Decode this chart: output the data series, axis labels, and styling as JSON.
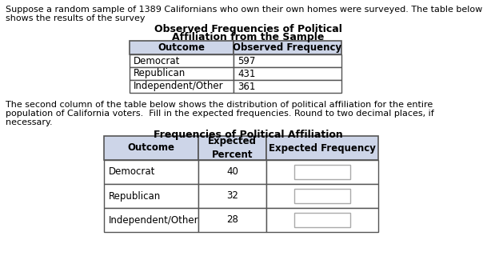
{
  "intro_line1": "Suppose a random sample of 1389 Californians who own their own homes were surveyed. The table below",
  "intro_line2": "shows the results of the survey",
  "table1_title_line1": "Observed Frequencies of Political",
  "table1_title_line2": "Affiliation from the Sample",
  "table1_headers": [
    "Outcome",
    "Observed Frequency"
  ],
  "table1_rows": [
    [
      "Democrat",
      "597"
    ],
    [
      "Republican",
      "431"
    ],
    [
      "Independent/Other",
      "361"
    ]
  ],
  "middle_line1": "The second column of the table below shows the distribution of political affiliation for the entire",
  "middle_line2": "population of California voters.  Fill in the expected frequencies. Round to two decimal places, if",
  "middle_line3": "necessary.",
  "table2_title": "Frequencies of Political Affiliation",
  "table2_headers": [
    "Outcome",
    "Expected\nPercent",
    "Expected Frequency"
  ],
  "table2_rows": [
    [
      "Democrat",
      "40",
      ""
    ],
    [
      "Republican",
      "32",
      ""
    ],
    [
      "Independent/Other",
      "28",
      ""
    ]
  ],
  "text_color": "#000000",
  "header_bg": "#cdd5e8",
  "table_border_color": "#555555",
  "input_box_color": "#aaaaaa",
  "background_color": "#ffffff",
  "fs_text": 8.0,
  "fs_table": 8.5,
  "fs_title_bold": 9.0
}
